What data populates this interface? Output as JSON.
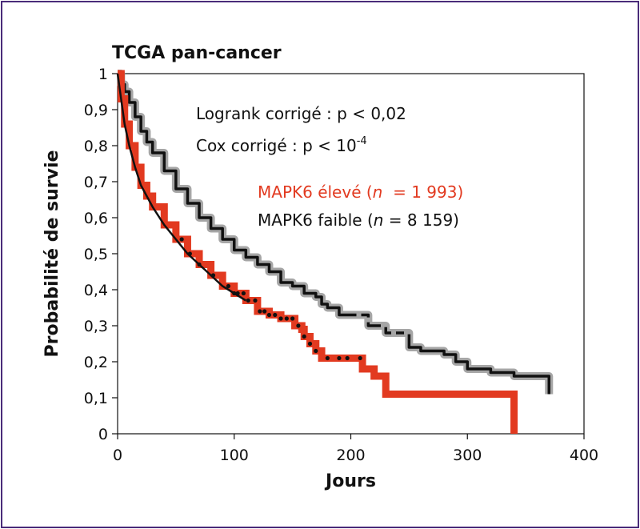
{
  "chart_data": {
    "type": "line",
    "title": "TCGA pan-cancer",
    "xlabel": "Jours",
    "ylabel": "Probabilité de survie",
    "xlim": [
      0,
      400
    ],
    "ylim": [
      0,
      1
    ],
    "x_ticks": [
      "0",
      "100",
      "200",
      "300",
      "400"
    ],
    "y_ticks": [
      "0",
      "0,1",
      "0,2",
      "0,3",
      "0,4",
      "0,5",
      "0,6",
      "0,7",
      "0,8",
      "0,9",
      "1"
    ],
    "grid": false,
    "annotations": {
      "logrank": "Logrank corrigé : p < 0,02",
      "cox_prefix": "Cox corrigé : p < 10",
      "cox_exponent": "-4"
    },
    "legend": {
      "high_label": "MAPK6 élevé (",
      "high_n_italic": "n",
      "high_n_value": "  = 1 993)",
      "low_label": "MAPK6 faible (",
      "low_n_italic": "n",
      "low_n_value": " = 8 159)"
    },
    "series": [
      {
        "name": "MAPK6 élevé",
        "color": "#e23a20",
        "x": [
          0,
          3,
          6,
          10,
          15,
          20,
          25,
          30,
          40,
          50,
          60,
          70,
          80,
          90,
          100,
          110,
          120,
          130,
          140,
          150,
          152,
          158,
          160,
          165,
          170,
          175,
          180,
          200,
          210,
          215,
          220,
          225,
          230,
          300,
          340,
          340
        ],
        "y": [
          1,
          0.93,
          0.86,
          0.8,
          0.74,
          0.69,
          0.66,
          0.63,
          0.58,
          0.54,
          0.5,
          0.47,
          0.44,
          0.41,
          0.39,
          0.37,
          0.34,
          0.33,
          0.32,
          0.32,
          0.3,
          0.29,
          0.27,
          0.25,
          0.23,
          0.21,
          0.21,
          0.21,
          0.18,
          0.18,
          0.16,
          0.16,
          0.11,
          0.11,
          0.11,
          0.0
        ]
      },
      {
        "name": "MAPK6 faible",
        "color": "#111111",
        "halo_color": "#a6a6a6",
        "x": [
          0,
          3,
          6,
          10,
          15,
          20,
          25,
          30,
          40,
          50,
          60,
          70,
          80,
          90,
          100,
          110,
          120,
          130,
          140,
          150,
          160,
          170,
          175,
          180,
          190,
          200,
          210,
          215,
          220,
          230,
          240,
          250,
          260,
          270,
          280,
          290,
          300,
          320,
          340,
          360,
          370
        ],
        "y": [
          1,
          0.97,
          0.95,
          0.92,
          0.88,
          0.84,
          0.81,
          0.78,
          0.73,
          0.68,
          0.64,
          0.6,
          0.57,
          0.54,
          0.51,
          0.49,
          0.47,
          0.45,
          0.42,
          0.41,
          0.39,
          0.38,
          0.36,
          0.35,
          0.33,
          0.33,
          0.33,
          0.3,
          0.3,
          0.28,
          0.28,
          0.24,
          0.23,
          0.23,
          0.22,
          0.2,
          0.18,
          0.17,
          0.16,
          0.16,
          0.11
        ]
      }
    ],
    "censor_marks_high_x": [
      55,
      62,
      70,
      82,
      95,
      100,
      103,
      108,
      112,
      118,
      122,
      126,
      130,
      135,
      140,
      145,
      150,
      155,
      160,
      165,
      170,
      180,
      190,
      197,
      208
    ]
  }
}
